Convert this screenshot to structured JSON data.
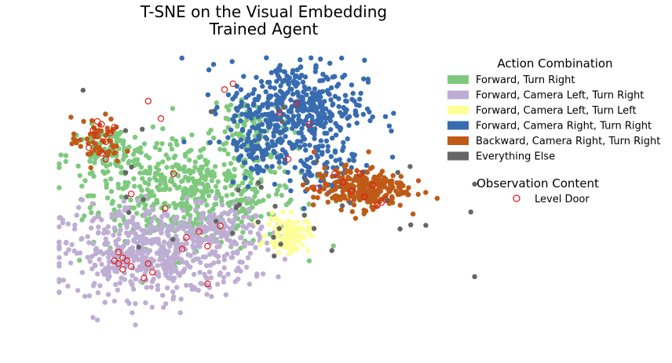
{
  "chart_data": {
    "type": "scatter",
    "title": "T-SNE on the Visual Embedding",
    "subtitle": "Trained Agent",
    "xlabel": "",
    "ylabel": "",
    "axes_visible": false,
    "grid": false,
    "legend_placement": "right",
    "legend_title": "Action Combination",
    "series": [
      {
        "name": "Forward, Turn Right",
        "color": "#7fc97f",
        "clusters": [
          {
            "cx": 33,
            "cy": 48,
            "sx": 12,
            "sy": 9,
            "n": 500
          },
          {
            "cx": 13,
            "cy": 61,
            "sx": 5,
            "sy": 5,
            "n": 110
          },
          {
            "cx": 46,
            "cy": 73,
            "sx": 5,
            "sy": 6,
            "n": 60
          }
        ]
      },
      {
        "name": "Forward, Camera Left, Turn Right",
        "color": "#beaed4",
        "clusters": [
          {
            "cx": 24,
            "cy": 28,
            "sx": 11,
            "sy": 8,
            "n": 520
          },
          {
            "cx": 40,
            "cy": 36,
            "sx": 5,
            "sy": 4,
            "n": 90
          },
          {
            "cx": 14,
            "cy": 24,
            "sx": 4,
            "sy": 5,
            "n": 50
          }
        ]
      },
      {
        "name": "Forward, Camera Left, Turn Left",
        "color": "#ffff99",
        "clusters": [
          {
            "cx": 55,
            "cy": 34,
            "sx": 2.5,
            "sy": 3,
            "n": 110
          }
        ]
      },
      {
        "name": "Forward, Camera Right, Turn Right",
        "color": "#386cb0",
        "clusters": [
          {
            "cx": 57,
            "cy": 78,
            "sx": 8,
            "sy": 8,
            "n": 420
          },
          {
            "cx": 48,
            "cy": 64,
            "sx": 4,
            "sy": 5,
            "n": 90
          },
          {
            "cx": 63,
            "cy": 58,
            "sx": 4,
            "sy": 5,
            "n": 80
          }
        ]
      },
      {
        "name": "Backward, Camera Right, Turn Right",
        "color": "#bf5b17",
        "clusters": [
          {
            "cx": 72,
            "cy": 50,
            "sx": 5.5,
            "sy": 3.5,
            "n": 260
          },
          {
            "cx": 10,
            "cy": 66,
            "sx": 3,
            "sy": 4,
            "n": 60
          }
        ]
      },
      {
        "name": "Everything Else",
        "color": "#666666",
        "clusters": [
          {
            "cx": 50,
            "cy": 50,
            "sx": 22,
            "sy": 18,
            "n": 45
          }
        ]
      }
    ],
    "overlay": {
      "title": "Observation Content",
      "name": "Level Door",
      "marker": "hollow-circle",
      "color": "#e41a1c",
      "points": [
        [
          9,
          70
        ],
        [
          10,
          68
        ],
        [
          11,
          72
        ],
        [
          12,
          66
        ],
        [
          13,
          69
        ],
        [
          8,
          64
        ],
        [
          11,
          62
        ],
        [
          14,
          71
        ],
        [
          10,
          73
        ],
        [
          12,
          60
        ],
        [
          15,
          28
        ],
        [
          16,
          26
        ],
        [
          17,
          25
        ],
        [
          15,
          24
        ],
        [
          18,
          23
        ],
        [
          16,
          22
        ],
        [
          14,
          25
        ],
        [
          23,
          21
        ],
        [
          22,
          24
        ],
        [
          21,
          19
        ],
        [
          30,
          29
        ],
        [
          31,
          33
        ],
        [
          36,
          30
        ],
        [
          34,
          35
        ],
        [
          39,
          37
        ],
        [
          36,
          17
        ],
        [
          26,
          43
        ],
        [
          18,
          48
        ],
        [
          28,
          55
        ],
        [
          68,
          52
        ],
        [
          70,
          49
        ],
        [
          73,
          47
        ],
        [
          75,
          51
        ],
        [
          77,
          45
        ],
        [
          78,
          46
        ],
        [
          76,
          44
        ],
        [
          66,
          55
        ],
        [
          72,
          55
        ],
        [
          53,
          76
        ],
        [
          57,
          79
        ],
        [
          60,
          72
        ],
        [
          42,
          86
        ],
        [
          40,
          84
        ],
        [
          25,
          74
        ],
        [
          22,
          80
        ],
        [
          55,
          60
        ],
        [
          62,
          50
        ]
      ]
    }
  }
}
